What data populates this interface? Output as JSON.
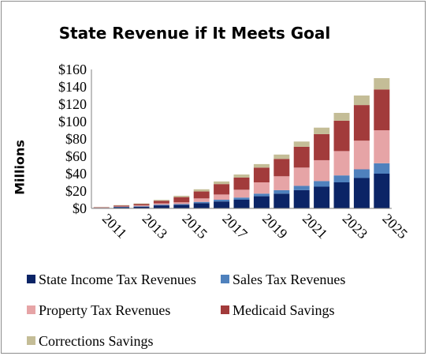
{
  "chart_data": {
    "type": "bar",
    "stacked": true,
    "title": "State Revenue if It Meets Goal",
    "xlabel": "",
    "ylabel": "Millions",
    "ylim": [
      0,
      160
    ],
    "y_ticks": [
      "$0",
      "$20",
      "$40",
      "$60",
      "$80",
      "$100",
      "$120",
      "$140",
      "$160"
    ],
    "y_tick_values": [
      0,
      20,
      40,
      60,
      80,
      100,
      120,
      140,
      160
    ],
    "categories": [
      "2011",
      "2012",
      "2013",
      "2014",
      "2015",
      "2016",
      "2017",
      "2018",
      "2019",
      "2020",
      "2021",
      "2022",
      "2023",
      "2024",
      "2025"
    ],
    "labeled_categories": [
      "2011",
      "2013",
      "2015",
      "2017",
      "2019",
      "2021",
      "2023",
      "2025"
    ],
    "grid": false,
    "legend_position": "bottom",
    "series": [
      {
        "name": "State Income Tax Revenues",
        "color": "#0b2466",
        "values": [
          0.5,
          1.5,
          2.0,
          3.5,
          4.0,
          6.0,
          8.0,
          10.0,
          14.0,
          17.0,
          21.0,
          25.0,
          30.0,
          35.0,
          40.0
        ]
      },
      {
        "name": "Sales Tax Revenues",
        "color": "#4f81bd",
        "values": [
          0.1,
          0.3,
          0.5,
          0.8,
          1.0,
          1.5,
          2.0,
          2.5,
          3.0,
          4.0,
          5.0,
          6.5,
          8.0,
          10.0,
          12.0
        ]
      },
      {
        "name": "Property Tax Revenues",
        "color": "#e6a4a6",
        "values": [
          0.2,
          0.5,
          1.0,
          1.5,
          2.0,
          4.0,
          6.0,
          9.0,
          13.0,
          16.0,
          21.0,
          24.0,
          28.0,
          33.0,
          38.0
        ]
      },
      {
        "name": "Medicaid Savings",
        "color": "#a23b3b",
        "values": [
          0.5,
          1.0,
          1.5,
          3.0,
          6.0,
          8.0,
          12.0,
          14.0,
          17.0,
          20.0,
          24.0,
          30.0,
          35.0,
          41.0,
          47.0
        ]
      },
      {
        "name": "Corrections Savings",
        "color": "#c4bd97",
        "values": [
          0.2,
          0.5,
          0.7,
          1.0,
          1.5,
          2.5,
          3.0,
          3.5,
          4.0,
          5.0,
          6.0,
          7.5,
          9.0,
          11.0,
          13.0
        ]
      }
    ]
  }
}
